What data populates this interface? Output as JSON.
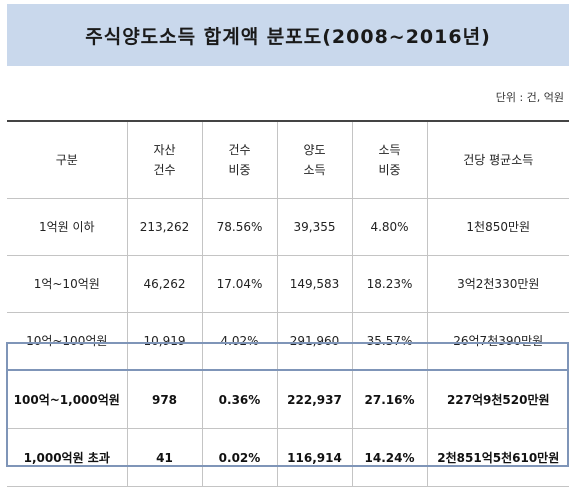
{
  "title": "주식양도소득 합계액 분포도(2008~2016년)",
  "unit_note": "단위 : 건, 억원",
  "table": {
    "headers": [
      [
        "구분"
      ],
      [
        "자산",
        "건수"
      ],
      [
        "건수",
        "비중"
      ],
      [
        "양도",
        "소득"
      ],
      [
        "소득",
        "비중"
      ],
      [
        "건당 평균소득"
      ]
    ],
    "rows": [
      {
        "category": "1억원 이하",
        "asset_count": "213,262",
        "count_share": "78.56%",
        "transfer_income": "39,355",
        "income_share": "4.80%",
        "avg_income": "1천850만원",
        "highlight": false
      },
      {
        "category": "1억~10억원",
        "asset_count": "46,262",
        "count_share": "17.04%",
        "transfer_income": "149,583",
        "income_share": "18.23%",
        "avg_income": "3억2천330만원",
        "highlight": false
      },
      {
        "category": "10억~100억원",
        "asset_count": "10,919",
        "count_share": "4.02%",
        "transfer_income": "291,960",
        "income_share": "35.57%",
        "avg_income": "26억7천390만원",
        "highlight": false
      },
      {
        "category": "100억~1,000억원",
        "asset_count": "978",
        "count_share": "0.36%",
        "transfer_income": "222,937",
        "income_share": "27.16%",
        "avg_income": "227억9천520만원",
        "highlight": true
      },
      {
        "category": "1,000억원 초과",
        "asset_count": "41",
        "count_share": "0.02%",
        "transfer_income": "116,914",
        "income_share": "14.24%",
        "avg_income": "2천851억5천610만원",
        "highlight": true
      }
    ]
  },
  "colors": {
    "title_band": "#c9d8ec",
    "highlight_border": "#7f95b8"
  }
}
